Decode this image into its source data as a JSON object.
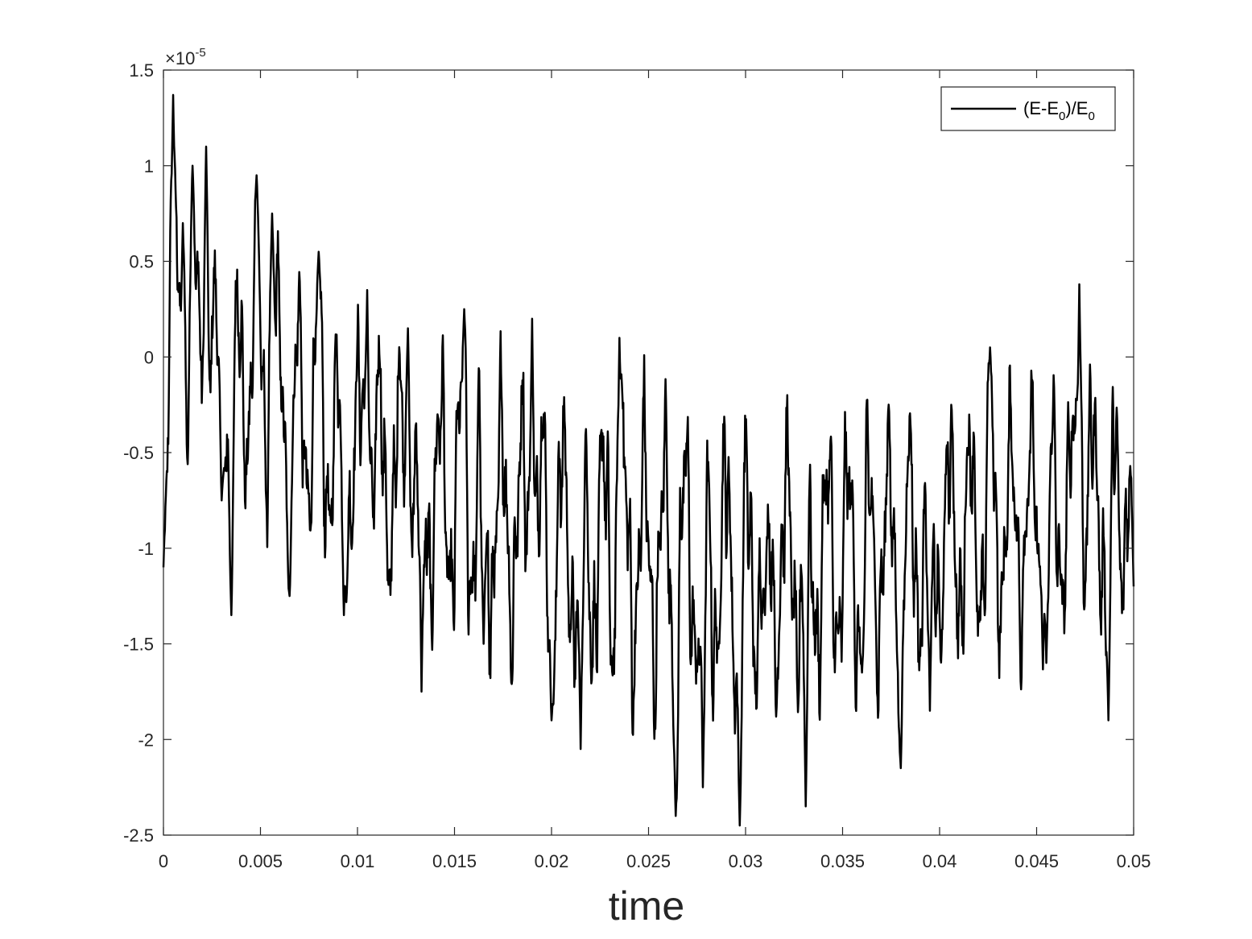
{
  "chart_data": {
    "type": "line",
    "title": "",
    "xlabel": "time",
    "ylabel": "",
    "xlim": [
      0,
      0.05
    ],
    "ylim": [
      -2.5,
      1.5
    ],
    "y_exponent_label": {
      "base": "×10",
      "exp": "-5"
    },
    "xticks": [
      {
        "v": 0,
        "label": "0"
      },
      {
        "v": 0.005,
        "label": "0.005"
      },
      {
        "v": 0.01,
        "label": "0.01"
      },
      {
        "v": 0.015,
        "label": "0.015"
      },
      {
        "v": 0.02,
        "label": "0.02"
      },
      {
        "v": 0.025,
        "label": "0.025"
      },
      {
        "v": 0.03,
        "label": "0.03"
      },
      {
        "v": 0.035,
        "label": "0.035"
      },
      {
        "v": 0.04,
        "label": "0.04"
      },
      {
        "v": 0.045,
        "label": "0.045"
      },
      {
        "v": 0.05,
        "label": "0.05"
      }
    ],
    "yticks": [
      {
        "v": 1.5,
        "label": "1.5"
      },
      {
        "v": 1,
        "label": "1"
      },
      {
        "v": 0.5,
        "label": "0.5"
      },
      {
        "v": 0,
        "label": "0"
      },
      {
        "v": -0.5,
        "label": "-0.5"
      },
      {
        "v": -1,
        "label": "-1"
      },
      {
        "v": -1.5,
        "label": "-1.5"
      },
      {
        "v": -2,
        "label": "-2"
      },
      {
        "v": -2.5,
        "label": "-2.5"
      }
    ],
    "grid": false,
    "legend_position": "top-right",
    "line_color": "#000000",
    "series": [
      {
        "name": "(E-E0)/E0",
        "legend": {
          "pre": "(E-E",
          "sub1": "0",
          "mid": ")/E",
          "sub2": "0"
        },
        "approximate_trend": {
          "t": [
            0,
            0.005,
            0.01,
            0.015,
            0.02,
            0.025,
            0.03,
            0.035,
            0.04,
            0.045,
            0.05
          ],
          "mean": [
            0.0,
            -0.1,
            -0.55,
            -0.75,
            -0.95,
            -1.05,
            -1.1,
            -1.05,
            -0.95,
            -0.85,
            -0.7
          ],
          "amplitude": [
            0.55,
            0.62,
            0.65,
            0.7,
            0.72,
            0.75,
            0.7,
            0.68,
            0.65,
            0.62,
            0.6
          ]
        },
        "x": [
          0,
          0.0005,
          0.001,
          0.0015,
          0.0022,
          0.003,
          0.0035,
          0.0048,
          0.0056,
          0.0065,
          0.008,
          0.0093,
          0.0105,
          0.0126,
          0.0133,
          0.0155,
          0.0165,
          0.019,
          0.02,
          0.0215,
          0.0235,
          0.0264,
          0.0278,
          0.0297,
          0.031,
          0.0331,
          0.036,
          0.038,
          0.0395,
          0.0426,
          0.0455,
          0.0472,
          0.0487,
          0.05
        ],
        "values": [
          -1.1,
          1.37,
          0.7,
          1.0,
          1.1,
          -0.75,
          -1.35,
          0.95,
          0.75,
          -1.25,
          0.55,
          -1.35,
          0.35,
          0.15,
          -1.75,
          0.25,
          -1.5,
          0.2,
          -1.9,
          -2.05,
          0.1,
          -2.4,
          -2.25,
          -2.45,
          -1.35,
          -2.35,
          -1.65,
          -2.15,
          -1.85,
          0.05,
          -1.6,
          0.38,
          -1.9,
          -1.2
        ]
      }
    ]
  }
}
